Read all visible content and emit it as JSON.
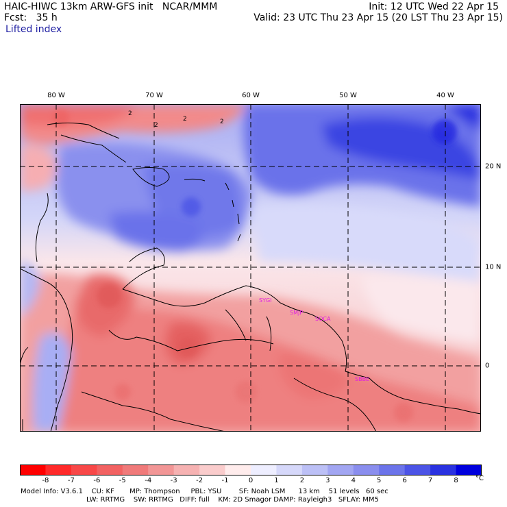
{
  "header": {
    "title": "HAIC-HIWC 13km ARW-GFS init   NCAR/MMM",
    "forecast": "Fcst:   35 h",
    "init": "Init: 12 UTC Wed 22 Apr 15",
    "valid": "Valid: 23 UTC Thu 23 Apr 15 (20 LST Thu 23 Apr 15)",
    "field": "Lifted index"
  },
  "map": {
    "longitude_labels": [
      "80 W",
      "70 W",
      "60 W",
      "50 W",
      "40 W"
    ],
    "latitude_labels": [
      "20 N",
      "10 N",
      "0"
    ],
    "contour_labels": [
      "2",
      "2",
      "2",
      "2"
    ],
    "stations": [
      "SYGI",
      "SMJP",
      "SOCA",
      "SBBE"
    ],
    "colors": {
      "station": "#e020e0",
      "grid": "#000000",
      "coast": "#000000"
    }
  },
  "colorbar": {
    "unit": "°C",
    "ticks": [
      "-8",
      "-7",
      "-6",
      "-5",
      "-4",
      "-3",
      "-2",
      "-1",
      "0",
      "1",
      "2",
      "3",
      "4",
      "5",
      "6",
      "7",
      "8"
    ],
    "colors": [
      "#ff0000",
      "#ff2a2a",
      "#f84848",
      "#f26262",
      "#f07a7a",
      "#f29696",
      "#f6b2b2",
      "#facccc",
      "#ffecec",
      "#eeeeff",
      "#d6d8fa",
      "#bcc0f6",
      "#a2a6f2",
      "#8a8eee",
      "#6c74ea",
      "#4c54e6",
      "#2a32e0",
      "#0000dd"
    ]
  },
  "model_info": {
    "line1": "Model Info: V3.6.1    CU: KF       MP: Thompson     PBL: YSU        SF: Noah LSM      13 km    51 levels   60 sec",
    "line2": "LW: RRTMG    SW: RRTMG   DIFF: full    KM: 2D Smagor DAMP: Rayleigh3   SFLAY: MM5"
  }
}
